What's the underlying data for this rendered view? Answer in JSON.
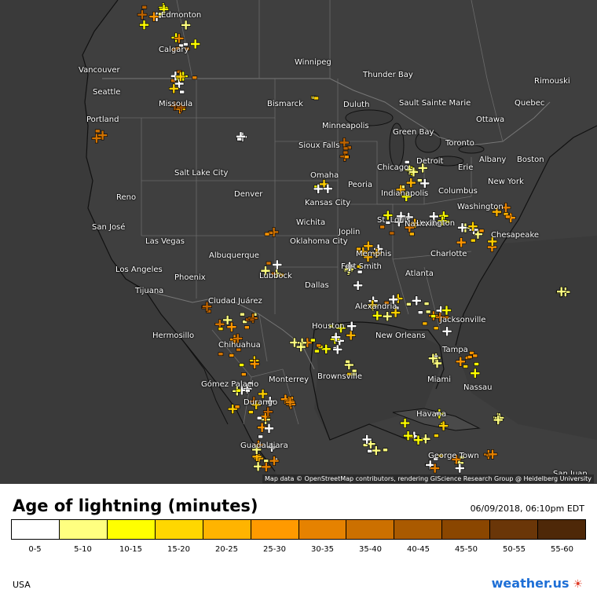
{
  "map": {
    "attribution": "Map data © OpenStreetMap contributors, rendering GIScience Research Group @ Heidelberg University",
    "cities": [
      "Edmonton",
      "Calgary",
      "Winnipeg",
      "Thunder Bay",
      "Rimouski",
      "Vancouver",
      "Seattle",
      "Missoula",
      "Bismarck",
      "Duluth",
      "Sault Sainte Marie",
      "Quebec",
      "Ottawa",
      "Portland",
      "Minneapolis",
      "Green Bay",
      "Sioux Falls",
      "Toronto",
      "Albany",
      "Boston",
      "Chicago",
      "Detroit",
      "Erie",
      "Salt Lake City",
      "Omaha",
      "Peoria",
      "New York",
      "Reno",
      "Denver",
      "Kansas City",
      "Indianapolis",
      "Columbus",
      "Washington",
      "Wichita",
      "Joplin",
      "St. Louis",
      "Nashville",
      "Lexington",
      "Chesapeake",
      "San José",
      "Las Vegas",
      "Oklahoma City",
      "Memphis",
      "Charlotte",
      "Albuquerque",
      "Fort Smith",
      "Los Angeles",
      "Lubbock",
      "Atlanta",
      "Phoenix",
      "Tijuana",
      "Dallas",
      "Ciudad Juárez",
      "Alexandria",
      "Jacksonville",
      "Hermosillo",
      "Houston",
      "New Orleans",
      "Chihuahua",
      "Tampa",
      "Brownsville",
      "Gómez Palacio",
      "Monterrey",
      "Miami",
      "Nassau",
      "Durango",
      "Havana",
      "Guadalajara",
      "George Town",
      "San Juan"
    ],
    "age_colors": [
      "#ffffff",
      "#ffff80",
      "#ffff00",
      "#ffd000",
      "#ffb400",
      "#ff9600",
      "#e68200",
      "#d27300",
      "#be6400",
      "#a05000",
      "#7d3c0a",
      "#5a2d0a"
    ]
  },
  "legend": {
    "title": "Age of lightning (minutes)",
    "timestamp": "06/09/2018, 06:10pm EDT",
    "ranges": [
      "0-5",
      "5-10",
      "10-15",
      "15-20",
      "20-25",
      "25-30",
      "30-35",
      "35-40",
      "40-45",
      "45-50",
      "50-55",
      "55-60"
    ],
    "colors": [
      "#ffffff",
      "#ffff80",
      "#ffff00",
      "#ffd700",
      "#ffb400",
      "#ff9a00",
      "#e68200",
      "#cc7000",
      "#aa5a00",
      "#8a4600",
      "#6a3608",
      "#4e2808"
    ]
  },
  "footer": {
    "region": "USA",
    "logo": "weather.us"
  }
}
